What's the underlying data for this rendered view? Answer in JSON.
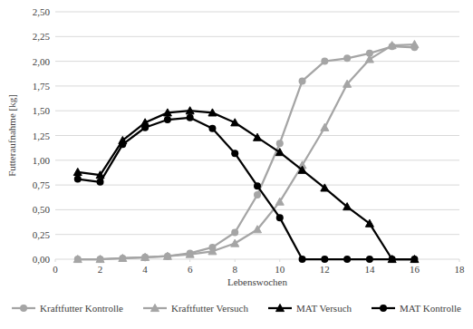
{
  "chart_data": {
    "type": "line",
    "x_label": "Lebenswochen",
    "y_label": "Futteraufnahme [kg]",
    "x": [
      1,
      2,
      3,
      4,
      5,
      6,
      7,
      8,
      9,
      10,
      11,
      12,
      13,
      14,
      15,
      16
    ],
    "xlim": [
      0,
      18
    ],
    "xticks": [
      0,
      2,
      4,
      6,
      8,
      10,
      12,
      14,
      16,
      18
    ],
    "ylim": [
      0,
      2.5
    ],
    "yticks": [
      {
        "value": 0,
        "label": "0,00"
      },
      {
        "value": 0.25,
        "label": "0,25"
      },
      {
        "value": 0.5,
        "label": "0,50"
      },
      {
        "value": 0.75,
        "label": "0,75"
      },
      {
        "value": 1,
        "label": "1,00"
      },
      {
        "value": 1.25,
        "label": "1,25"
      },
      {
        "value": 1.5,
        "label": "1,50"
      },
      {
        "value": 1.75,
        "label": "1,75"
      },
      {
        "value": 2,
        "label": "2,00"
      },
      {
        "value": 2.25,
        "label": "2,25"
      },
      {
        "value": 2.5,
        "label": "2,50"
      }
    ],
    "grid": true,
    "legend": "bottom",
    "series": [
      {
        "name": "Kraftfutter Kontrolle",
        "color": "#a5a5a5",
        "marker": "circle",
        "line_style": "solid",
        "values": [
          0.0,
          0.0,
          0.01,
          0.02,
          0.03,
          0.06,
          0.12,
          0.27,
          0.65,
          1.17,
          1.8,
          2.0,
          2.03,
          2.08,
          2.15,
          2.14
        ]
      },
      {
        "name": "Kraftfutter Versuch",
        "color": "#a5a5a5",
        "marker": "triangle",
        "line_style": "solid",
        "values": [
          0.0,
          0.0,
          0.01,
          0.02,
          0.03,
          0.05,
          0.08,
          0.16,
          0.3,
          0.58,
          0.95,
          1.33,
          1.77,
          2.02,
          2.16,
          2.17
        ]
      },
      {
        "name": "MAT Versuch",
        "color": "#000000",
        "marker": "triangle",
        "line_style": "solid",
        "values": [
          0.88,
          0.85,
          1.2,
          1.38,
          1.48,
          1.5,
          1.48,
          1.38,
          1.23,
          1.08,
          0.9,
          0.72,
          0.53,
          0.36,
          0.0,
          0.0
        ]
      },
      {
        "name": "MAT Kontrolle",
        "color": "#000000",
        "marker": "circle",
        "line_style": "solid",
        "values": [
          0.81,
          0.78,
          1.16,
          1.33,
          1.41,
          1.43,
          1.32,
          1.07,
          0.74,
          0.42,
          0.0,
          0.0,
          0.0,
          0.0,
          0.0,
          0.0
        ]
      }
    ]
  }
}
